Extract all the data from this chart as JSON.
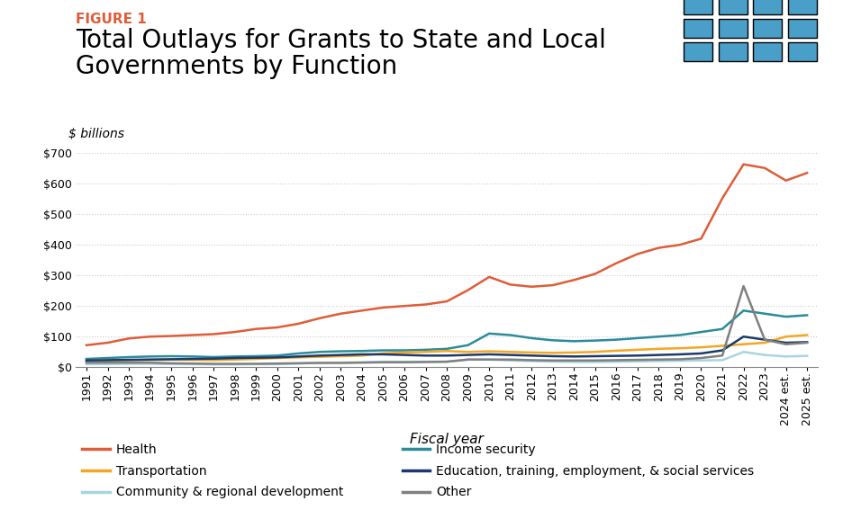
{
  "title_label": "FIGURE 1",
  "title_line1": "Total Outlays for Grants to State and Local",
  "title_line2": "Governments by Function",
  "ylabel": "$ billions",
  "xlabel": "Fiscal year",
  "background_color": "#ffffff",
  "years": [
    "1991",
    "1992",
    "1993",
    "1994",
    "1995",
    "1996",
    "1997",
    "1998",
    "1999",
    "2000",
    "2001",
    "2002",
    "2003",
    "2004",
    "2005",
    "2006",
    "2007",
    "2008",
    "2009",
    "2010",
    "2011",
    "2012",
    "2013",
    "2014",
    "2015",
    "2016",
    "2017",
    "2018",
    "2019",
    "2020",
    "2021",
    "2022",
    "2023",
    "2024 est.",
    "2025 est."
  ],
  "series": {
    "Health": {
      "color": "#e05c38",
      "values": [
        72,
        80,
        94,
        100,
        102,
        105,
        108,
        115,
        125,
        130,
        142,
        160,
        175,
        185,
        195,
        200,
        205,
        215,
        252,
        295,
        270,
        263,
        268,
        285,
        305,
        340,
        370,
        390,
        400,
        420,
        552,
        663,
        651,
        610,
        635
      ]
    },
    "Income security": {
      "color": "#2a8b9a",
      "values": [
        27,
        30,
        33,
        35,
        36,
        35,
        33,
        35,
        36,
        38,
        45,
        50,
        52,
        53,
        55,
        55,
        57,
        60,
        72,
        110,
        105,
        95,
        88,
        85,
        87,
        90,
        95,
        100,
        105,
        115,
        125,
        185,
        175,
        165,
        170
      ]
    },
    "Transportation": {
      "color": "#f5a623",
      "values": [
        20,
        22,
        23,
        24,
        25,
        24,
        23,
        25,
        27,
        30,
        32,
        34,
        36,
        38,
        45,
        48,
        50,
        53,
        50,
        52,
        50,
        48,
        47,
        48,
        50,
        54,
        57,
        60,
        62,
        65,
        70,
        75,
        80,
        100,
        105
      ]
    },
    "Education, training, employment, & social services": {
      "color": "#1b3a6b",
      "values": [
        22,
        23,
        24,
        25,
        26,
        27,
        28,
        30,
        31,
        32,
        35,
        38,
        40,
        42,
        42,
        40,
        38,
        38,
        40,
        42,
        40,
        38,
        36,
        35,
        36,
        37,
        38,
        40,
        42,
        45,
        55,
        100,
        90,
        80,
        82
      ]
    },
    "Community & regional development": {
      "color": "#a8d4e0",
      "values": [
        10,
        10,
        11,
        11,
        10,
        10,
        9,
        9,
        10,
        10,
        12,
        14,
        15,
        16,
        18,
        18,
        18,
        18,
        25,
        25,
        22,
        20,
        18,
        17,
        17,
        18,
        19,
        20,
        21,
        22,
        23,
        50,
        40,
        35,
        37
      ]
    },
    "Other": {
      "color": "#808080",
      "values": [
        15,
        15,
        15,
        15,
        13,
        12,
        11,
        11,
        11,
        12,
        13,
        14,
        14,
        15,
        16,
        16,
        17,
        18,
        25,
        25,
        25,
        23,
        22,
        22,
        22,
        23,
        24,
        25,
        26,
        30,
        38,
        265,
        90,
        75,
        80
      ]
    }
  },
  "legend_left": [
    "Health",
    "Transportation",
    "Community & regional development"
  ],
  "legend_right": [
    "Income security",
    "Education, training, employment, & social services",
    "Other"
  ],
  "ylim": [
    0,
    700
  ],
  "yticks": [
    0,
    100,
    200,
    300,
    400,
    500,
    600,
    700
  ],
  "grid_color": "#cccccc",
  "title_label_color": "#e05c38",
  "title_fontsize": 20,
  "figure_label_fontsize": 11,
  "ylabel_fontsize": 10,
  "xlabel_fontsize": 11,
  "tick_fontsize": 9,
  "legend_fontsize": 10,
  "tpc_bg_color": "#1b3a6b",
  "tpc_sq_color": "#4a9fc8"
}
